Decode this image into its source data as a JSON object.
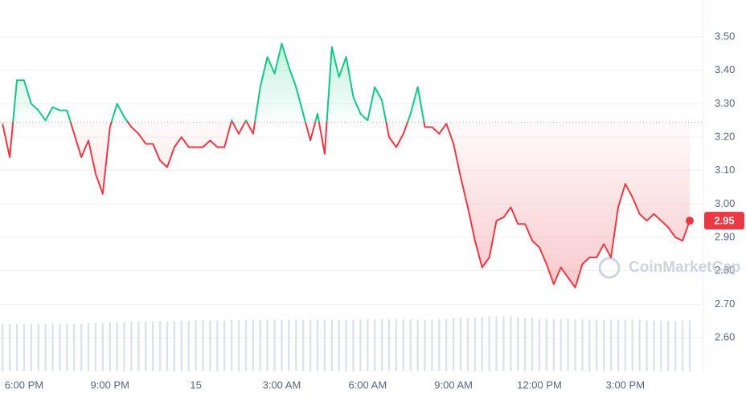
{
  "chart_data": {
    "type": "line",
    "categories": [
      null,
      null,
      null,
      "6:00 PM",
      null,
      null,
      null,
      null,
      null,
      null,
      null,
      null,
      null,
      null,
      null,
      "9:00 PM",
      null,
      null,
      null,
      null,
      null,
      null,
      null,
      null,
      null,
      null,
      null,
      "15",
      null,
      null,
      null,
      null,
      null,
      null,
      null,
      null,
      null,
      null,
      null,
      "3:00 AM",
      null,
      null,
      null,
      null,
      null,
      null,
      null,
      null,
      null,
      null,
      null,
      "6:00 AM",
      null,
      null,
      null,
      null,
      null,
      null,
      null,
      null,
      null,
      null,
      null,
      "9:00 AM",
      null,
      null,
      null,
      null,
      null,
      null,
      null,
      null,
      null,
      null,
      null,
      "12:00 PM",
      null,
      null,
      null,
      null,
      null,
      null,
      null,
      null,
      null,
      null,
      null,
      "3:00 PM",
      null,
      null,
      null,
      null,
      null,
      null,
      null,
      null,
      null
    ],
    "series": [
      {
        "values": [
          3.24,
          3.14,
          3.37,
          3.37,
          3.3,
          3.28,
          3.25,
          3.29,
          3.28,
          3.28,
          3.21,
          3.14,
          3.19,
          3.09,
          3.03,
          3.23,
          3.3,
          3.26,
          3.23,
          3.21,
          3.18,
          3.18,
          3.13,
          3.11,
          3.17,
          3.2,
          3.17,
          3.17,
          3.17,
          3.19,
          3.17,
          3.17,
          3.25,
          3.21,
          3.25,
          3.21,
          3.35,
          3.44,
          3.39,
          3.48,
          3.41,
          3.35,
          3.27,
          3.19,
          3.27,
          3.15,
          3.47,
          3.38,
          3.44,
          3.32,
          3.27,
          3.25,
          3.35,
          3.31,
          3.2,
          3.17,
          3.21,
          3.27,
          3.35,
          3.23,
          3.23,
          3.21,
          3.24,
          3.18,
          3.08,
          2.99,
          2.89,
          2.81,
          2.84,
          2.95,
          2.96,
          2.99,
          2.94,
          2.94,
          2.89,
          2.87,
          2.82,
          2.76,
          2.81,
          2.78,
          2.75,
          2.82,
          2.84,
          2.84,
          2.88,
          2.84,
          2.99,
          3.06,
          3.02,
          2.97,
          2.95,
          2.97,
          2.95,
          2.93,
          2.9,
          2.89,
          2.95
        ]
      }
    ],
    "volume": [
      59,
      59,
      59,
      59,
      59,
      59,
      59,
      59,
      59,
      59,
      59,
      59,
      60,
      60,
      60,
      61,
      61,
      61,
      62,
      62,
      62,
      62,
      62,
      62,
      62,
      63,
      63,
      63,
      63,
      63,
      63,
      63,
      64,
      64,
      64,
      64,
      64,
      64,
      64,
      64,
      64,
      64,
      64,
      64,
      64,
      64,
      64,
      64,
      64,
      64,
      64,
      65,
      65,
      65,
      65,
      65,
      65,
      65,
      64,
      64,
      64,
      65,
      65,
      66,
      66,
      66,
      67,
      67,
      68,
      68,
      68,
      68,
      67,
      66,
      66,
      65,
      65,
      65,
      65,
      65,
      65,
      65,
      64,
      64,
      64,
      64,
      64,
      64,
      64,
      64,
      63,
      63,
      63,
      63,
      63,
      63,
      63
    ],
    "baseline": 3.245,
    "up_color": "#16c784",
    "down_color": "#ea3943",
    "volume_color": "#cfd6e4",
    "ylim": [
      2.5,
      3.6
    ],
    "yticks": [
      {
        "value": 2.6,
        "label": "2.60"
      },
      {
        "value": 2.7,
        "label": "2.70"
      },
      {
        "value": 2.8,
        "label": "2.80"
      },
      {
        "value": 2.9,
        "label": "2.90"
      },
      {
        "value": 3.0,
        "label": "3.00"
      },
      {
        "value": 3.1,
        "label": "3.10"
      },
      {
        "value": 3.2,
        "label": "3.20"
      },
      {
        "value": 3.3,
        "label": "3.30"
      },
      {
        "value": 3.4,
        "label": "3.40"
      },
      {
        "value": 3.5,
        "label": "3.50"
      }
    ],
    "grid": true,
    "watermark": "CoinMarketCap"
  }
}
